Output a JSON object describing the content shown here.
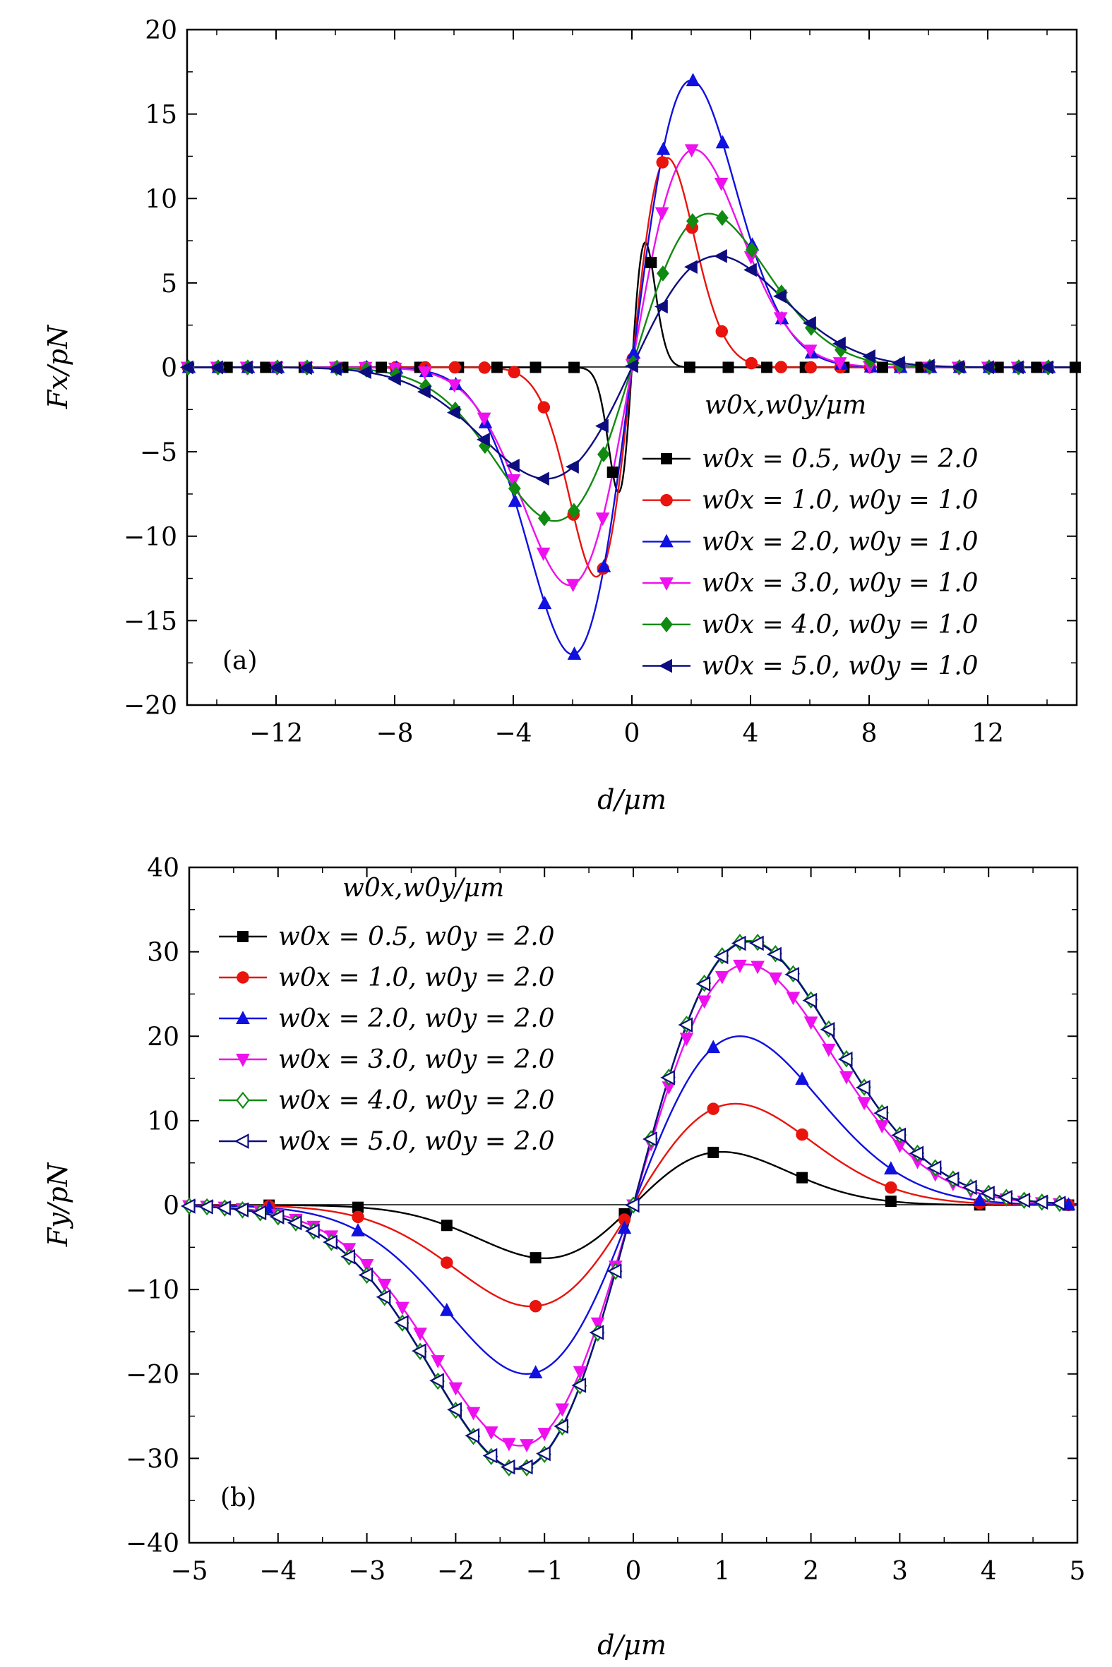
{
  "chart_data": [
    {
      "type": "line",
      "panel_label": "(a)",
      "xlabel": "d/μm",
      "ylabel": "Fx/pN",
      "xlim": [
        -15,
        15
      ],
      "ylim": [
        -20,
        20
      ],
      "xticks": [
        -12,
        -8,
        -4,
        0,
        4,
        8,
        12
      ],
      "xtick_labels": [
        "−12",
        "−8",
        "−4",
        "0",
        "4",
        "8",
        "12"
      ],
      "yticks": [
        -20,
        -15,
        -10,
        -5,
        0,
        5,
        10,
        15,
        20
      ],
      "ytick_labels": [
        "−20",
        "−15",
        "−10",
        "−5",
        "0",
        "5",
        "10",
        "15",
        "20"
      ],
      "grid": false,
      "legend_title": "w0x,w0y/μm",
      "legend_position": "right, below center line",
      "series": [
        {
          "name": "w0x = 0.5, w0y = 2.0",
          "color": "#000000",
          "marker": "square",
          "amplitude": 7.4,
          "width": 0.5,
          "center": 0.45
        },
        {
          "name": "w0x = 1.0, w0y = 1.0",
          "color": "#e8140d",
          "marker": "circle",
          "amplitude": 12.4,
          "width": 1.0,
          "center": 1.2
        },
        {
          "name": "w0x = 2.0, w0y = 1.0",
          "color": "#1010e0",
          "marker": "triangle-up",
          "amplitude": 17.0,
          "width": 2.0,
          "center": 2.0
        },
        {
          "name": "w0x = 3.0, w0y = 1.0",
          "color": "#ee10ee",
          "marker": "triangle-down",
          "amplitude": 12.9,
          "width": 3.0,
          "center": 2.1
        },
        {
          "name": "w0x = 4.0, w0y = 1.0",
          "color": "#118a11",
          "marker": "diamond",
          "amplitude": 9.1,
          "width": 4.0,
          "center": 2.6
        },
        {
          "name": "w0x = 5.0, w0y = 1.0",
          "color": "#0d0d80",
          "marker": "triangle-left",
          "amplitude": 6.6,
          "width": 5.0,
          "center": 2.9
        }
      ]
    },
    {
      "type": "line",
      "panel_label": "(b)",
      "xlabel": "d/μm",
      "ylabel": "Fy/pN",
      "xlim": [
        -5,
        5
      ],
      "ylim": [
        -40,
        40
      ],
      "xticks": [
        -5,
        -4,
        -3,
        -2,
        -1,
        0,
        1,
        2,
        3,
        4,
        5
      ],
      "xtick_labels": [
        "−5",
        "−4",
        "−3",
        "−2",
        "−1",
        "0",
        "1",
        "2",
        "3",
        "4",
        "5"
      ],
      "yticks": [
        -40,
        -30,
        -20,
        -10,
        0,
        10,
        20,
        30,
        40
      ],
      "ytick_labels": [
        "−40",
        "−30",
        "−20",
        "−10",
        "0",
        "10",
        "20",
        "30",
        "40"
      ],
      "grid": false,
      "legend_title": "w0x,w0y/μm",
      "legend_position": "top-left",
      "series": [
        {
          "name": "w0x = 0.5, w0y = 2.0",
          "color": "#000000",
          "marker": "square",
          "amplitude": 6.3,
          "center": 1.0
        },
        {
          "name": "w0x = 1.0, w0y = 2.0",
          "color": "#e8140d",
          "marker": "circle",
          "amplitude": 12.0,
          "center": 1.15
        },
        {
          "name": "w0x = 2.0, w0y = 2.0",
          "color": "#1010e0",
          "marker": "triangle-up",
          "amplitude": 20.0,
          "center": 1.2
        },
        {
          "name": "w0x = 3.0, w0y = 2.0",
          "color": "#ee10ee",
          "marker": "triangle-down",
          "amplitude": 28.5,
          "center": 1.28
        },
        {
          "name": "w0x = 4.0, w0y = 2.0",
          "color": "#118a11",
          "marker": "diamond-open",
          "amplitude": 31.3,
          "center": 1.3
        },
        {
          "name": "w0x = 5.0, w0y = 2.0",
          "color": "#0d0d80",
          "marker": "triangle-left-open",
          "amplitude": 31.2,
          "center": 1.3
        }
      ]
    }
  ]
}
